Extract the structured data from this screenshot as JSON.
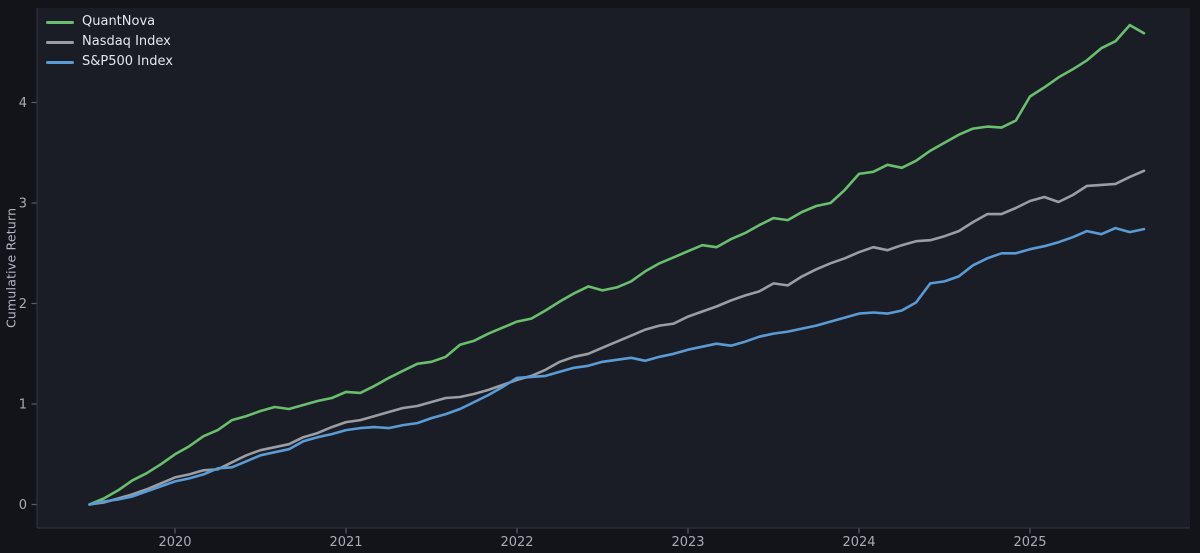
{
  "figure": {
    "background_color": "#121419",
    "plot_background_color": "#1a1d25",
    "spine_color": "#34373f",
    "tick_color": "#5a5e67",
    "tick_label_color": "#a6abb5",
    "axis_title_color": "#b3b8c2",
    "legend_text_color": "#e3e6ea"
  },
  "chart_data": {
    "type": "line",
    "title": "",
    "xlabel": "",
    "ylabel": "Cumulative Return",
    "x_frequency": "monthly",
    "x_start": "2019-07",
    "x_end": "2025-09",
    "x_ticks": [
      "2020",
      "2021",
      "2022",
      "2023",
      "2024",
      "2025"
    ],
    "x_tick_month_indices": [
      6,
      18,
      30,
      42,
      54,
      66
    ],
    "y_ticks": [
      "0",
      "1",
      "2",
      "3",
      "4"
    ],
    "ylim": [
      -0.23,
      4.94
    ],
    "grid": false,
    "legend_position": "top-left",
    "series": [
      {
        "name": "QuantNova",
        "color": "#6abf6e",
        "values": [
          0.0,
          0.06,
          0.14,
          0.24,
          0.31,
          0.4,
          0.5,
          0.58,
          0.68,
          0.74,
          0.84,
          0.88,
          0.93,
          0.97,
          0.95,
          0.99,
          1.03,
          1.06,
          1.12,
          1.11,
          1.18,
          1.26,
          1.33,
          1.4,
          1.42,
          1.47,
          1.59,
          1.63,
          1.7,
          1.76,
          1.82,
          1.85,
          1.93,
          2.02,
          2.1,
          2.17,
          2.13,
          2.16,
          2.22,
          2.32,
          2.4,
          2.46,
          2.52,
          2.58,
          2.56,
          2.64,
          2.7,
          2.78,
          2.85,
          2.83,
          2.91,
          2.97,
          3.0,
          3.13,
          3.29,
          3.31,
          3.38,
          3.35,
          3.42,
          3.52,
          3.6,
          3.68,
          3.74,
          3.76,
          3.75,
          3.82,
          4.06,
          4.15,
          4.25,
          4.33,
          4.42,
          4.54,
          4.61,
          4.77,
          4.69
        ]
      },
      {
        "name": "Nasdaq Index",
        "color": "#9a9da3",
        "values": [
          0.0,
          0.02,
          0.06,
          0.1,
          0.15,
          0.21,
          0.27,
          0.3,
          0.34,
          0.35,
          0.42,
          0.49,
          0.54,
          0.57,
          0.6,
          0.67,
          0.71,
          0.77,
          0.82,
          0.84,
          0.88,
          0.92,
          0.96,
          0.98,
          1.02,
          1.06,
          1.07,
          1.1,
          1.14,
          1.19,
          1.24,
          1.28,
          1.34,
          1.42,
          1.47,
          1.5,
          1.56,
          1.62,
          1.68,
          1.74,
          1.78,
          1.8,
          1.87,
          1.92,
          1.97,
          2.03,
          2.08,
          2.12,
          2.2,
          2.18,
          2.27,
          2.34,
          2.4,
          2.45,
          2.51,
          2.56,
          2.53,
          2.58,
          2.62,
          2.63,
          2.67,
          2.72,
          2.81,
          2.89,
          2.89,
          2.95,
          3.02,
          3.06,
          3.01,
          3.08,
          3.17,
          3.18,
          3.19,
          3.26,
          3.32
        ]
      },
      {
        "name": "S&P500 Index",
        "color": "#5b9bd5",
        "values": [
          0.0,
          0.03,
          0.05,
          0.08,
          0.13,
          0.18,
          0.23,
          0.26,
          0.3,
          0.36,
          0.37,
          0.43,
          0.49,
          0.52,
          0.55,
          0.63,
          0.67,
          0.7,
          0.74,
          0.76,
          0.77,
          0.76,
          0.79,
          0.81,
          0.86,
          0.9,
          0.95,
          1.02,
          1.09,
          1.17,
          1.26,
          1.27,
          1.28,
          1.32,
          1.36,
          1.38,
          1.42,
          1.44,
          1.46,
          1.43,
          1.47,
          1.5,
          1.54,
          1.57,
          1.6,
          1.58,
          1.62,
          1.67,
          1.7,
          1.72,
          1.75,
          1.78,
          1.82,
          1.86,
          1.9,
          1.91,
          1.9,
          1.93,
          2.01,
          2.2,
          2.22,
          2.27,
          2.38,
          2.45,
          2.5,
          2.5,
          2.54,
          2.57,
          2.61,
          2.66,
          2.72,
          2.69,
          2.75,
          2.71,
          2.74
        ]
      }
    ]
  }
}
